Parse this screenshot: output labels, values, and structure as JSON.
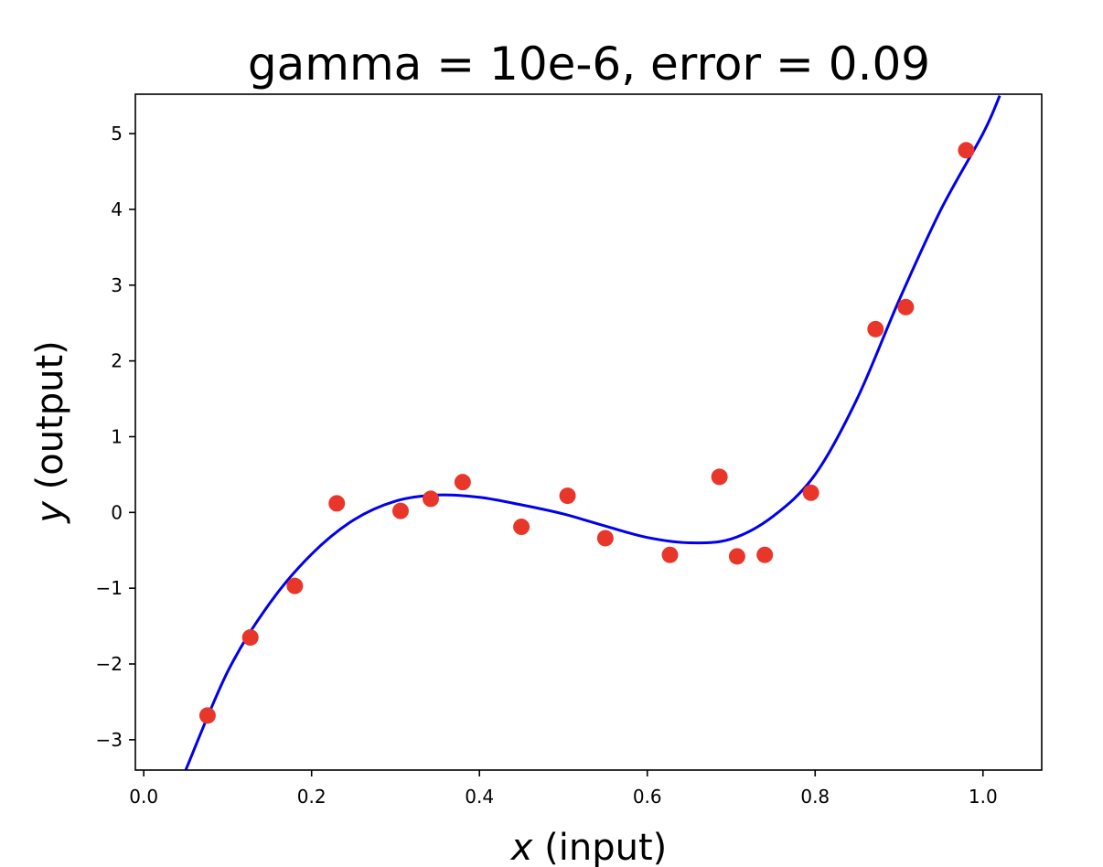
{
  "chart_data": {
    "type": "scatter",
    "title": "gamma = 10e-6, error = 0.09",
    "xlabel_var": "x",
    "xlabel_text": " (input)",
    "ylabel_var": "y",
    "ylabel_text": " (output)",
    "xlim": [
      -0.01,
      1.07
    ],
    "ylim": [
      -3.4,
      5.52
    ],
    "xticks": [
      0.0,
      0.2,
      0.4,
      0.6,
      0.8,
      1.0
    ],
    "xtick_labels": [
      "0.0",
      "0.2",
      "0.4",
      "0.6",
      "0.8",
      "1.0"
    ],
    "yticks": [
      -3,
      -2,
      -1,
      0,
      1,
      2,
      3,
      4,
      5
    ],
    "ytick_labels": [
      "−3",
      "−2",
      "−1",
      "0",
      "1",
      "2",
      "3",
      "4",
      "5"
    ],
    "grid": false,
    "series": [
      {
        "kind": "scatter",
        "color": "#e8372a",
        "x": [
          0.076,
          0.127,
          0.18,
          0.23,
          0.306,
          0.342,
          0.38,
          0.45,
          0.505,
          0.55,
          0.627,
          0.686,
          0.707,
          0.74,
          0.795,
          0.872,
          0.908,
          0.98
        ],
        "y": [
          -2.68,
          -1.65,
          -0.97,
          0.12,
          0.02,
          0.18,
          0.4,
          -0.19,
          0.22,
          -0.34,
          -0.56,
          0.47,
          -0.58,
          -0.56,
          0.26,
          2.42,
          2.71,
          4.78
        ]
      },
      {
        "kind": "line",
        "color": "#0000ee",
        "x": [
          0.05,
          0.1,
          0.15,
          0.2,
          0.25,
          0.3,
          0.35,
          0.4,
          0.45,
          0.5,
          0.55,
          0.6,
          0.65,
          0.7,
          0.75,
          0.8,
          0.85,
          0.9,
          0.95,
          1.0,
          1.02
        ],
        "y": [
          -3.4,
          -2.1,
          -1.2,
          -0.55,
          -0.1,
          0.15,
          0.23,
          0.2,
          0.1,
          -0.02,
          -0.18,
          -0.33,
          -0.4,
          -0.35,
          -0.05,
          0.5,
          1.5,
          2.8,
          4.0,
          5.0,
          5.5
        ]
      }
    ]
  }
}
